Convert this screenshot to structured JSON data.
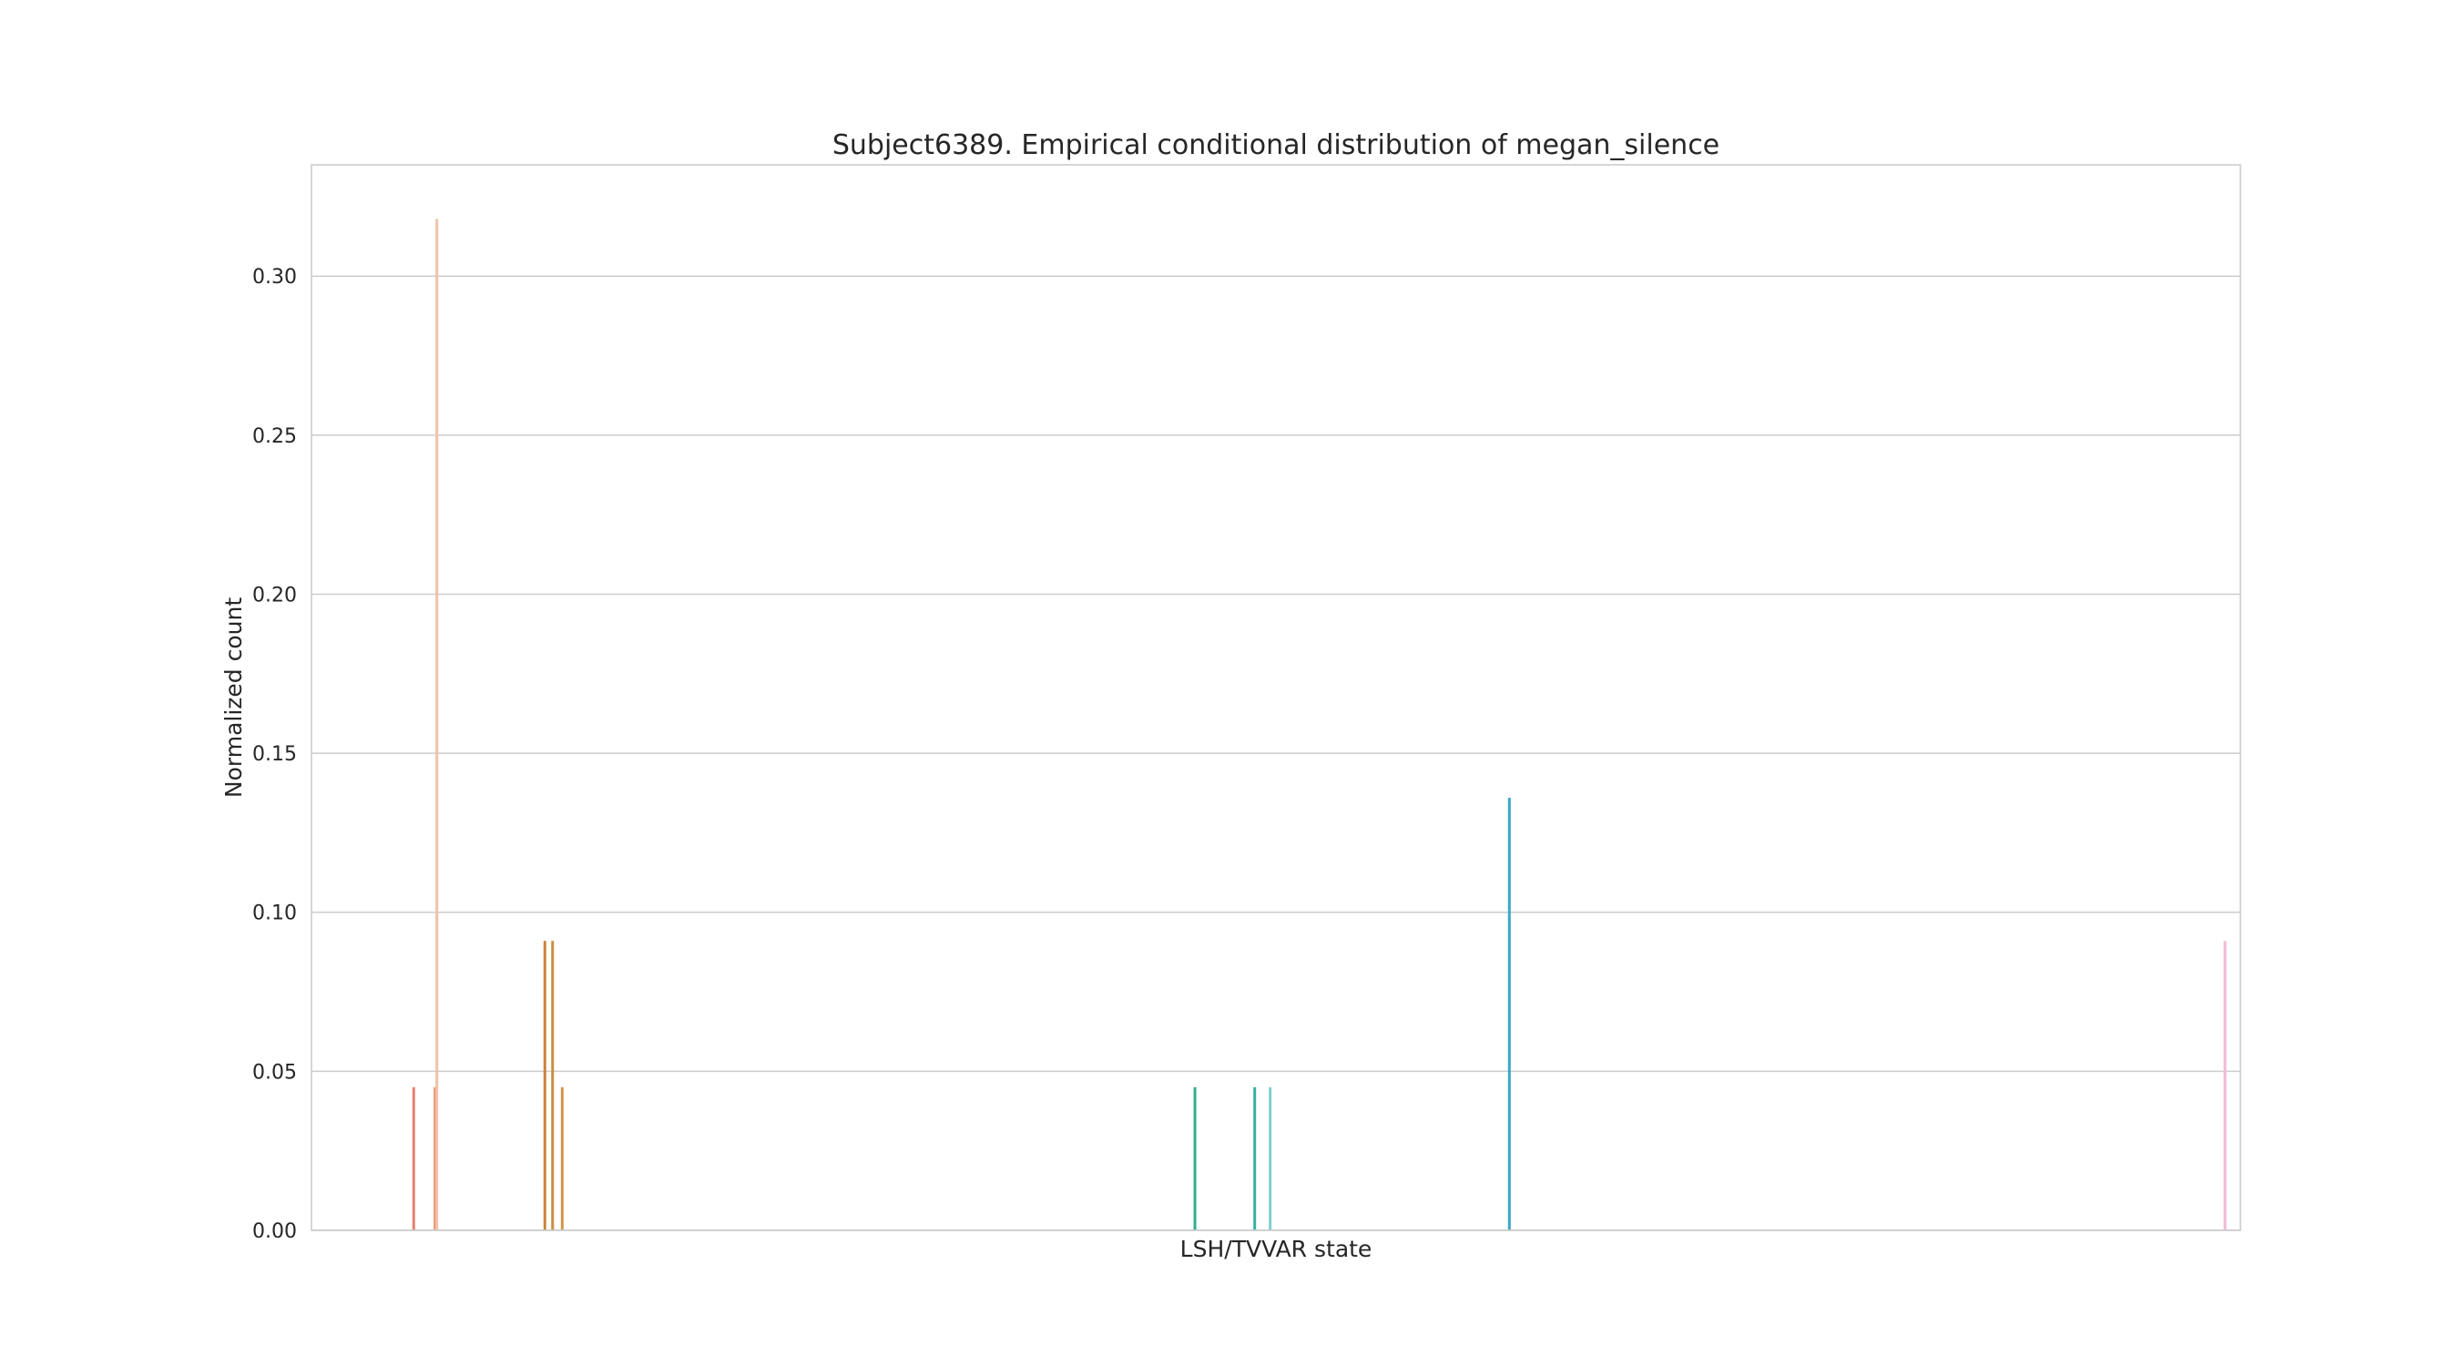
{
  "chart_data": {
    "type": "bar",
    "title": "Subject6389. Empirical conditional distribution of megan_silence",
    "xlabel": "LSH/TVVAR state",
    "ylabel": "Normalized count",
    "ylim": [
      0,
      0.335
    ],
    "yticks": [
      "0.00",
      "0.05",
      "0.10",
      "0.15",
      "0.20",
      "0.25",
      "0.30"
    ],
    "ytick_values": [
      0,
      0.05,
      0.1,
      0.15,
      0.2,
      0.25,
      0.3
    ],
    "x_range": [
      0,
      1
    ],
    "grid": "horizontal",
    "bars": [
      {
        "x": 0.053,
        "value": 0.045,
        "color": "#e8806e"
      },
      {
        "x": 0.064,
        "value": 0.045,
        "color": "#ec9a7c"
      },
      {
        "x": 0.065,
        "value": 0.318,
        "color": "#f2c0a8"
      },
      {
        "x": 0.121,
        "value": 0.091,
        "color": "#c9853c"
      },
      {
        "x": 0.125,
        "value": 0.091,
        "color": "#cc8e40"
      },
      {
        "x": 0.13,
        "value": 0.045,
        "color": "#d4964e"
      },
      {
        "x": 0.458,
        "value": 0.045,
        "color": "#2db08a"
      },
      {
        "x": 0.489,
        "value": 0.045,
        "color": "#35b0a0"
      },
      {
        "x": 0.497,
        "value": 0.045,
        "color": "#7fd0d0"
      },
      {
        "x": 0.621,
        "value": 0.136,
        "color": "#3aa7c8"
      },
      {
        "x": 0.992,
        "value": 0.091,
        "color": "#f4b8d4"
      }
    ]
  }
}
